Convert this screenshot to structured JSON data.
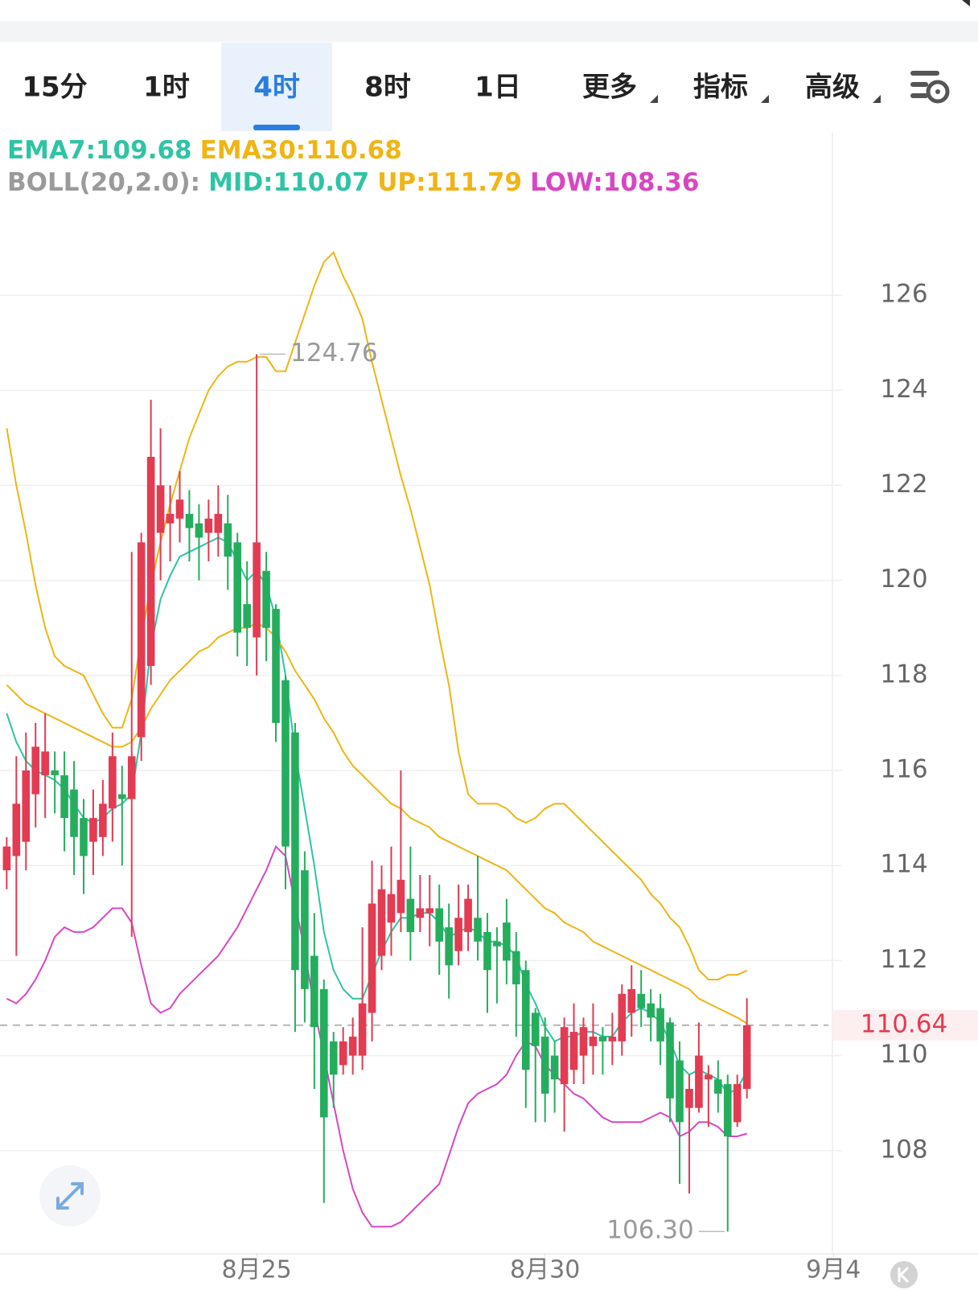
{
  "toolbar": {
    "tabs": [
      {
        "label": "15分",
        "dropdown": false
      },
      {
        "label": "1时",
        "dropdown": false
      },
      {
        "label": "4时",
        "dropdown": false
      },
      {
        "label": "8时",
        "dropdown": false
      },
      {
        "label": "1日",
        "dropdown": false
      },
      {
        "label": "更多",
        "dropdown": true
      },
      {
        "label": "指标",
        "dropdown": true
      },
      {
        "label": "高级",
        "dropdown": true
      }
    ],
    "active_tab": "4时"
  },
  "chart_data": {
    "type": "candlestick",
    "up_color": "#e23b52",
    "down_color": "#25ad5e",
    "open": [
      113.9,
      114.2,
      114.5,
      115.5,
      115.9,
      116.0,
      115.9,
      115.6,
      115.0,
      114.5,
      114.6,
      115.2,
      115.5,
      115.4,
      116.7,
      118.2,
      121.0,
      121.2,
      121.3,
      121.4,
      121.2,
      121.0,
      121.0,
      121.2,
      120.8,
      119.5,
      118.8,
      120.2,
      119.4,
      117.9,
      116.8,
      113.9,
      112.1,
      111.4,
      110.3,
      109.8,
      110.0,
      110.0,
      110.9,
      112.1,
      112.8,
      113.0,
      113.3,
      112.9,
      113.0,
      113.1,
      112.7,
      112.2,
      112.6,
      112.9,
      112.6,
      112.4,
      112.8,
      112.2,
      111.8,
      110.9,
      110.4,
      110.0,
      109.4,
      109.7,
      110.0,
      110.2,
      110.4,
      110.3,
      110.3,
      110.9,
      111.3,
      111.1,
      111.0,
      110.7,
      109.9,
      108.9,
      108.9,
      109.5,
      109.5,
      109.4,
      108.6,
      109.3
    ],
    "high": [
      114.6,
      116.3,
      116.8,
      117.0,
      117.2,
      116.4,
      116.4,
      116.2,
      115.4,
      115.6,
      115.8,
      116.8,
      116.1,
      120.6,
      121.0,
      123.8,
      123.2,
      122.0,
      122.3,
      121.9,
      121.6,
      121.7,
      122.0,
      121.8,
      121.0,
      120.4,
      124.76,
      120.6,
      119.5,
      118.0,
      117.0,
      114.3,
      113.0,
      111.6,
      110.5,
      110.6,
      110.8,
      112.7,
      114.1,
      114.0,
      114.4,
      116.0,
      114.4,
      113.8,
      113.8,
      113.6,
      113.2,
      113.6,
      113.6,
      114.2,
      113.0,
      112.7,
      113.3,
      112.6,
      112.0,
      111.0,
      110.8,
      110.3,
      110.8,
      111.1,
      110.8,
      111.1,
      110.6,
      110.9,
      111.5,
      111.9,
      111.8,
      111.4,
      111.3,
      110.8,
      110.3,
      109.6,
      110.7,
      109.8,
      109.9,
      109.6,
      109.6,
      111.21
    ],
    "low": [
      113.5,
      112.1,
      113.9,
      114.8,
      115.0,
      115.1,
      114.3,
      113.8,
      113.4,
      113.8,
      114.2,
      114.5,
      114.0,
      112.5,
      116.2,
      117.8,
      120.0,
      120.4,
      120.8,
      120.4,
      120.0,
      120.4,
      120.5,
      119.8,
      118.4,
      118.2,
      118.0,
      118.3,
      116.6,
      113.5,
      110.5,
      110.7,
      109.3,
      106.9,
      108.9,
      109.6,
      109.6,
      109.7,
      110.3,
      111.8,
      112.1,
      112.6,
      112.0,
      112.6,
      112.3,
      111.7,
      111.2,
      111.9,
      112.2,
      112.0,
      110.9,
      111.1,
      111.5,
      110.4,
      108.9,
      108.6,
      108.6,
      108.8,
      108.4,
      109.4,
      109.4,
      109.6,
      109.6,
      109.8,
      110.0,
      110.4,
      110.6,
      110.3,
      109.8,
      108.6,
      107.3,
      107.1,
      108.8,
      108.5,
      108.8,
      106.3,
      108.5,
      109.1
    ],
    "close": [
      114.4,
      115.3,
      116.0,
      116.5,
      116.4,
      115.9,
      115.0,
      114.6,
      114.2,
      115.0,
      115.3,
      116.3,
      115.4,
      116.3,
      120.8,
      122.6,
      122.0,
      121.4,
      121.7,
      121.1,
      120.9,
      121.3,
      121.4,
      120.5,
      118.9,
      119.0,
      120.8,
      119.0,
      117.0,
      114.4,
      111.8,
      111.4,
      110.6,
      108.7,
      109.6,
      110.3,
      110.4,
      111.1,
      113.2,
      113.5,
      113.4,
      113.7,
      112.6,
      113.1,
      113.1,
      112.4,
      111.9,
      112.9,
      113.3,
      112.4,
      111.8,
      112.3,
      112.0,
      111.5,
      109.7,
      110.2,
      109.2,
      109.5,
      110.6,
      110.5,
      110.6,
      110.4,
      110.3,
      110.4,
      111.3,
      111.4,
      111.0,
      110.8,
      110.3,
      109.1,
      108.6,
      109.3,
      110.0,
      109.6,
      109.2,
      108.3,
      109.4,
      110.64
    ],
    "series": [
      {
        "name": "EMA7:109.68",
        "color": "#2ec4a5",
        "values": [
          117.2,
          116.6,
          116.2,
          116.0,
          115.9,
          115.8,
          115.6,
          115.3,
          115.0,
          114.9,
          115.0,
          115.2,
          115.3,
          115.5,
          116.8,
          118.6,
          119.6,
          120.1,
          120.5,
          120.6,
          120.7,
          120.8,
          120.9,
          120.8,
          120.4,
          120.0,
          120.2,
          119.9,
          119.2,
          118.0,
          116.4,
          115.2,
          114.0,
          112.6,
          111.8,
          111.4,
          111.2,
          111.2,
          111.7,
          112.2,
          112.6,
          112.9,
          112.9,
          113.0,
          113.0,
          112.8,
          112.5,
          112.6,
          112.7,
          112.6,
          112.4,
          112.4,
          112.3,
          112.1,
          111.5,
          111.1,
          110.6,
          110.3,
          110.4,
          110.4,
          110.5,
          110.5,
          110.4,
          110.4,
          110.7,
          110.9,
          111.0,
          110.9,
          110.7,
          110.3,
          109.8,
          109.6,
          109.7,
          109.6,
          109.5,
          109.2,
          109.3,
          109.68
        ]
      },
      {
        "name": "EMA30:110.68",
        "color": "#f0b414",
        "values": [
          117.8,
          117.6,
          117.4,
          117.3,
          117.2,
          117.1,
          117.0,
          116.9,
          116.8,
          116.7,
          116.6,
          116.5,
          116.5,
          116.6,
          116.9,
          117.3,
          117.6,
          117.9,
          118.1,
          118.3,
          118.5,
          118.6,
          118.8,
          118.9,
          119.0,
          119.0,
          119.1,
          119.0,
          118.8,
          118.5,
          118.1,
          117.8,
          117.5,
          117.1,
          116.8,
          116.4,
          116.1,
          115.9,
          115.7,
          115.5,
          115.3,
          115.2,
          115.0,
          114.9,
          114.8,
          114.6,
          114.5,
          114.4,
          114.3,
          114.2,
          114.1,
          114.0,
          113.9,
          113.7,
          113.5,
          113.3,
          113.1,
          113.0,
          112.8,
          112.7,
          112.6,
          112.4,
          112.3,
          112.2,
          112.1,
          112.0,
          111.9,
          111.8,
          111.7,
          111.6,
          111.5,
          111.4,
          111.2,
          111.1,
          111.0,
          110.9,
          110.8,
          110.68
        ]
      },
      {
        "name": "UP:111.79",
        "color": "#f0b414",
        "values": [
          123.2,
          122.0,
          121.0,
          119.9,
          119.0,
          118.4,
          118.2,
          118.1,
          118.0,
          117.6,
          117.2,
          116.9,
          116.9,
          117.5,
          118.8,
          119.9,
          120.8,
          121.6,
          122.3,
          123.0,
          123.5,
          124.0,
          124.3,
          124.5,
          124.6,
          124.6,
          124.7,
          124.7,
          124.4,
          124.4,
          125.0,
          125.6,
          126.2,
          126.7,
          126.9,
          126.4,
          126.0,
          125.5,
          124.6,
          123.8,
          123.0,
          122.2,
          121.5,
          120.7,
          119.9,
          118.8,
          117.8,
          116.4,
          115.5,
          115.3,
          115.3,
          115.3,
          115.2,
          115.0,
          114.9,
          115.0,
          115.2,
          115.3,
          115.3,
          115.1,
          114.9,
          114.7,
          114.5,
          114.3,
          114.1,
          113.9,
          113.7,
          113.4,
          113.2,
          112.9,
          112.7,
          112.3,
          111.8,
          111.6,
          111.6,
          111.7,
          111.7,
          111.79
        ]
      },
      {
        "name": "LOW:108.36",
        "color": "#d846c4",
        "values": [
          111.2,
          111.1,
          111.3,
          111.6,
          112.0,
          112.5,
          112.7,
          112.6,
          112.6,
          112.7,
          112.9,
          113.1,
          113.1,
          112.8,
          111.9,
          111.1,
          110.9,
          111.0,
          111.3,
          111.5,
          111.7,
          111.9,
          112.1,
          112.4,
          112.7,
          113.1,
          113.5,
          113.9,
          114.4,
          114.2,
          113.2,
          112.2,
          111.0,
          110.0,
          109.0,
          108.0,
          107.2,
          106.7,
          106.4,
          106.4,
          106.4,
          106.5,
          106.7,
          106.9,
          107.1,
          107.3,
          107.9,
          108.5,
          109.0,
          109.2,
          109.3,
          109.4,
          109.6,
          110.0,
          110.3,
          110.2,
          109.8,
          109.6,
          109.4,
          109.2,
          109.1,
          108.9,
          108.7,
          108.6,
          108.6,
          108.6,
          108.6,
          108.7,
          108.8,
          108.7,
          108.3,
          108.4,
          108.6,
          108.6,
          108.5,
          108.3,
          108.3,
          108.36
        ]
      }
    ],
    "boll_label": "BOLL(20,2.0):",
    "mid_label": "MID:110.07",
    "mid_color": "#2ec4a5",
    "high_label": "124.76",
    "low_label": "106.30",
    "last_price": 110.64,
    "ylim": [
      105.83,
      129.42
    ],
    "yticks": [
      108,
      110,
      112,
      114,
      116,
      118,
      120,
      122,
      124,
      126
    ],
    "xlim": [
      -0.7,
      86.9
    ],
    "xticks": [
      {
        "value": 26,
        "label": "8月25"
      },
      {
        "value": 56,
        "label": "8月30"
      },
      {
        "value": 86,
        "label": "9月4"
      }
    ],
    "grid": true
  }
}
